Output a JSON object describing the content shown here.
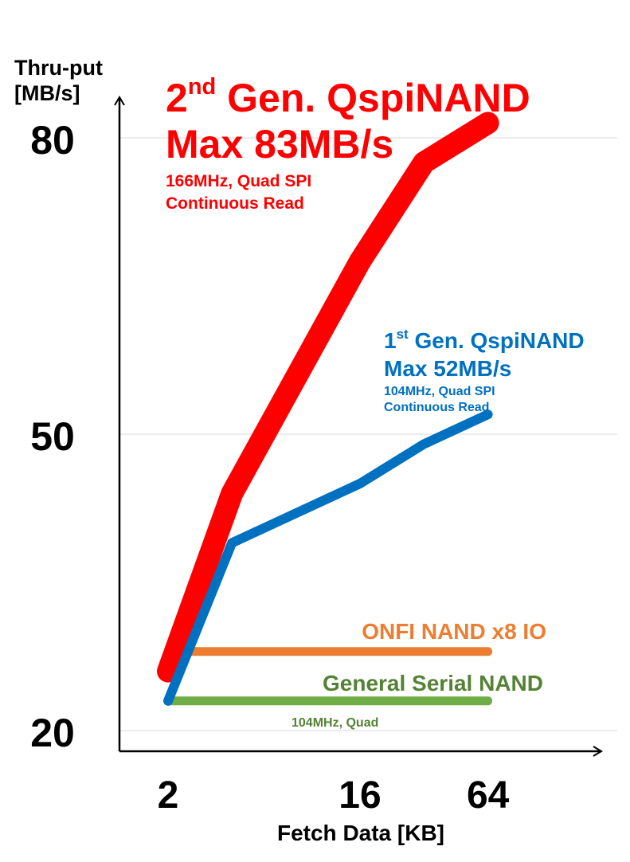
{
  "chart_data": {
    "type": "line",
    "ylabel_line1": "Thru-put",
    "ylabel_line2": "[MB/s]",
    "xlabel": "Fetch Data [KB]",
    "ylim": [
      20,
      82
    ],
    "y_ticks": [
      "20",
      "50",
      "80"
    ],
    "y_tick_values": [
      20,
      50,
      80
    ],
    "x_ticks": [
      "2",
      "16",
      "64"
    ],
    "x_tick_values": [
      2,
      16,
      64
    ],
    "grid": true,
    "series": [
      {
        "name_main": "2nd Gen. QspiNAND",
        "name_prefix": "2",
        "name_sup": "nd",
        "name_rest": " Gen. QspiNAND",
        "subtitle": "Max 83MB/s",
        "note_line1": "166MHz, Quad SPI",
        "note_line2": "Continuous Read",
        "color": "#ff0000",
        "x": [
          2,
          4,
          16,
          32,
          64
        ],
        "y": [
          26.0,
          44.0,
          67.5,
          77.5,
          81.5
        ]
      },
      {
        "name_main": "1st Gen. QspiNAND",
        "name_prefix": "1",
        "name_sup": "st",
        "name_rest": " Gen. QspiNAND",
        "subtitle": "Max 52MB/s",
        "note_line1": "104MHz, Quad SPI",
        "note_line2": "Continuous Read",
        "color": "#0070c0",
        "x": [
          2,
          4,
          16,
          32,
          64
        ],
        "y": [
          23.0,
          39.0,
          45.0,
          49.0,
          52.0
        ]
      },
      {
        "name_main": "ONFI NAND x8 IO",
        "color": "#ed7d31",
        "x": [
          2.5,
          64
        ],
        "y": [
          28.0,
          28.0
        ]
      },
      {
        "name_main": "General Serial NAND",
        "note_line1": "104MHz, Quad",
        "color": "#70ad47",
        "x": [
          2,
          64
        ],
        "y": [
          23.0,
          23.0
        ]
      }
    ]
  }
}
